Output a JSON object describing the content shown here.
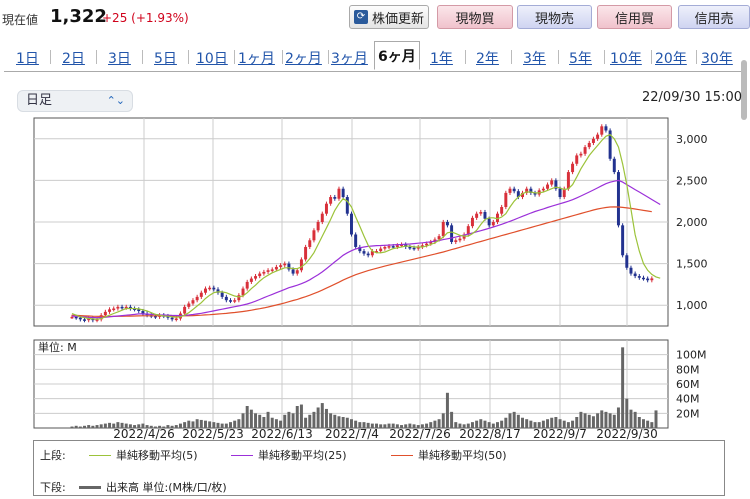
{
  "header": {
    "price_label": "現在値",
    "price_value": "1,322",
    "price_change": "+25 (+1.93%)",
    "refresh_label": "株価更新",
    "buttons": [
      {
        "label": "現物買",
        "style": "red"
      },
      {
        "label": "現物売",
        "style": "blue"
      },
      {
        "label": "信用買",
        "style": "red"
      },
      {
        "label": "信用売",
        "style": "blue"
      }
    ],
    "colors": {
      "price_up": "#d0021b",
      "sell": "#cfd4f1",
      "buy": "#f0c2cc"
    }
  },
  "tabs": [
    {
      "label": "1日",
      "active": false
    },
    {
      "label": "2日",
      "active": false
    },
    {
      "label": "3日",
      "active": false
    },
    {
      "label": "5日",
      "active": false
    },
    {
      "label": "10日",
      "active": false
    },
    {
      "label": "1ヶ月",
      "active": false
    },
    {
      "label": "2ヶ月",
      "active": false
    },
    {
      "label": "3ヶ月",
      "active": false
    },
    {
      "label": "6ヶ月",
      "active": true
    },
    {
      "label": "1年",
      "active": false
    },
    {
      "label": "2年",
      "active": false
    },
    {
      "label": "3年",
      "active": false
    },
    {
      "label": "5年",
      "active": false
    },
    {
      "label": "10年",
      "active": false
    },
    {
      "label": "20年",
      "active": false
    },
    {
      "label": "30年",
      "active": false
    }
  ],
  "controls": {
    "interval": "日足",
    "datetime": "22/09/30 15:00"
  },
  "legend": {
    "upper_label": "上段:",
    "lower_label": "下段:",
    "ma5": "単純移動平均(5)",
    "ma25": "単純移動平均(25)",
    "ma50": "単純移動平均(50)",
    "volume": "出来高 単位:(M株/口/枚)",
    "colors": {
      "ma5": "#9cc33a",
      "ma25": "#9b30d9",
      "ma50": "#e0502c",
      "volume": "#666666"
    }
  },
  "chart_data": [
    {
      "type": "candlestick",
      "y_ticks": [
        "3,000",
        "2,500",
        "2,000",
        "1,500",
        "1,000"
      ],
      "ylim": [
        750,
        3250
      ],
      "x_ticks": [
        "2022/4/26",
        "2022/5/23",
        "2022/6/13",
        "2022/7/4",
        "2022/7/26",
        "2022/8/17",
        "2022/9/7",
        "2022/9/30"
      ],
      "candle_colors": {
        "up": "#d8303a",
        "down": "#22328f"
      },
      "closes": [
        860,
        850,
        830,
        820,
        840,
        820,
        830,
        880,
        920,
        950,
        960,
        980,
        970,
        980,
        960,
        950,
        930,
        900,
        880,
        870,
        860,
        880,
        870,
        850,
        830,
        840,
        900,
        980,
        1020,
        1060,
        1100,
        1150,
        1200,
        1210,
        1190,
        1150,
        1100,
        1060,
        1050,
        1060,
        1120,
        1200,
        1280,
        1320,
        1350,
        1380,
        1400,
        1420,
        1430,
        1460,
        1480,
        1500,
        1430,
        1380,
        1420,
        1550,
        1700,
        1780,
        1900,
        2000,
        2100,
        2220,
        2300,
        2280,
        2400,
        2300,
        2100,
        1850,
        1700,
        1650,
        1620,
        1600,
        1650,
        1650,
        1680,
        1700,
        1710,
        1700,
        1720,
        1730,
        1700,
        1690,
        1680,
        1700,
        1720,
        1740,
        1760,
        1790,
        1830,
        2000,
        1960,
        1760,
        1780,
        1800,
        1850,
        1950,
        2050,
        2100,
        2120,
        2040,
        1960,
        2000,
        2100,
        2180,
        2350,
        2400,
        2370,
        2300,
        2350,
        2400,
        2350,
        2330,
        2380,
        2400,
        2450,
        2500,
        2400,
        2300,
        2400,
        2600,
        2700,
        2800,
        2820,
        2900,
        2950,
        3000,
        3050,
        3150,
        3100,
        2760,
        2600,
        1960,
        1600,
        1450,
        1380,
        1350,
        1330,
        1320,
        1300,
        1322
      ],
      "ma5": [
        900,
        880,
        860,
        850,
        840,
        835,
        830,
        840,
        860,
        880,
        900,
        920,
        940,
        960,
        960,
        960,
        955,
        945,
        930,
        910,
        890,
        880,
        870,
        868,
        860,
        855,
        860,
        880,
        910,
        950,
        990,
        1030,
        1080,
        1120,
        1150,
        1160,
        1160,
        1150,
        1130,
        1110,
        1100,
        1110,
        1150,
        1200,
        1240,
        1290,
        1330,
        1360,
        1390,
        1410,
        1430,
        1450,
        1450,
        1440,
        1440,
        1460,
        1500,
        1560,
        1630,
        1730,
        1830,
        1930,
        2030,
        2140,
        2220,
        2280,
        2250,
        2180,
        2060,
        1950,
        1830,
        1720,
        1650,
        1630,
        1630,
        1640,
        1660,
        1680,
        1690,
        1700,
        1710,
        1710,
        1700,
        1700,
        1700,
        1710,
        1730,
        1750,
        1780,
        1820,
        1870,
        1880,
        1860,
        1840,
        1830,
        1830,
        1860,
        1900,
        1970,
        2030,
        2050,
        2050,
        2040,
        2060,
        2100,
        2180,
        2250,
        2300,
        2340,
        2360,
        2360,
        2350,
        2350,
        2360,
        2380,
        2400,
        2420,
        2410,
        2390,
        2400,
        2450,
        2540,
        2640,
        2720,
        2800,
        2860,
        2920,
        2980,
        3030,
        3050,
        3000,
        2900,
        2700,
        2450,
        2150,
        1850,
        1650,
        1500,
        1420,
        1370,
        1340,
        1325
      ],
      "ma25": [
        870,
        865,
        862,
        858,
        855,
        852,
        850,
        852,
        855,
        860,
        865,
        870,
        875,
        880,
        885,
        890,
        895,
        895,
        893,
        890,
        888,
        885,
        882,
        880,
        878,
        876,
        875,
        878,
        882,
        888,
        895,
        903,
        912,
        922,
        932,
        942,
        952,
        962,
        972,
        982,
        992,
        1002,
        1015,
        1030,
        1048,
        1068,
        1090,
        1110,
        1130,
        1150,
        1170,
        1190,
        1210,
        1225,
        1240,
        1258,
        1280,
        1305,
        1335,
        1365,
        1400,
        1440,
        1480,
        1520,
        1560,
        1600,
        1630,
        1655,
        1675,
        1690,
        1700,
        1708,
        1712,
        1716,
        1718,
        1720,
        1722,
        1725,
        1728,
        1730,
        1733,
        1736,
        1740,
        1745,
        1750,
        1756,
        1762,
        1770,
        1778,
        1788,
        1798,
        1808,
        1818,
        1830,
        1842,
        1855,
        1868,
        1882,
        1896,
        1910,
        1924,
        1940,
        1956,
        1972,
        1990,
        2008,
        2028,
        2048,
        2068,
        2088,
        2108,
        2126,
        2142,
        2158,
        2174,
        2190,
        2206,
        2220,
        2234,
        2250,
        2268,
        2290,
        2312,
        2336,
        2360,
        2385,
        2410,
        2436,
        2460,
        2478,
        2490,
        2500,
        2480,
        2450,
        2420,
        2390,
        2360,
        2330,
        2300,
        2270,
        2240,
        2210
      ],
      "ma50": [
        880,
        878,
        875,
        872,
        870,
        868,
        866,
        865,
        864,
        864,
        865,
        866,
        867,
        868,
        869,
        870,
        871,
        872,
        872,
        872,
        872,
        872,
        872,
        872,
        871,
        871,
        871,
        872,
        873,
        875,
        877,
        880,
        883,
        886,
        890,
        894,
        898,
        902,
        907,
        912,
        918,
        924,
        932,
        940,
        949,
        958,
        968,
        978,
        990,
        1002,
        1015,
        1028,
        1042,
        1056,
        1070,
        1086,
        1102,
        1120,
        1140,
        1160,
        1182,
        1205,
        1228,
        1252,
        1277,
        1302,
        1325,
        1346,
        1366,
        1384,
        1400,
        1416,
        1430,
        1444,
        1457,
        1470,
        1482,
        1494,
        1506,
        1518,
        1530,
        1542,
        1554,
        1566,
        1578,
        1590,
        1602,
        1614,
        1627,
        1640,
        1654,
        1668,
        1682,
        1696,
        1710,
        1724,
        1738,
        1752,
        1766,
        1780,
        1794,
        1808,
        1822,
        1836,
        1850,
        1864,
        1878,
        1892,
        1906,
        1920,
        1934,
        1948,
        1962,
        1976,
        1990,
        2004,
        2018,
        2032,
        2046,
        2060,
        2074,
        2088,
        2102,
        2116,
        2130,
        2144,
        2156,
        2166,
        2174,
        2180,
        2182,
        2180,
        2176,
        2170,
        2163,
        2156,
        2148,
        2140,
        2132,
        2124
      ]
    },
    {
      "type": "bar",
      "title": "単位: M",
      "y_ticks": [
        "100M",
        "80M",
        "60M",
        "40M",
        "20M"
      ],
      "ylim": [
        0,
        120
      ],
      "values": [
        2,
        3,
        2,
        3,
        4,
        3,
        4,
        5,
        6,
        7,
        6,
        8,
        7,
        6,
        5,
        4,
        5,
        6,
        4,
        3,
        2,
        3,
        2,
        4,
        3,
        4,
        6,
        8,
        10,
        9,
        12,
        11,
        10,
        9,
        8,
        7,
        6,
        6,
        8,
        10,
        12,
        20,
        30,
        25,
        20,
        18,
        15,
        22,
        14,
        12,
        10,
        18,
        22,
        20,
        30,
        32,
        14,
        18,
        22,
        28,
        34,
        26,
        20,
        18,
        16,
        15,
        14,
        12,
        10,
        8,
        8,
        7,
        6,
        6,
        5,
        5,
        6,
        6,
        5,
        4,
        5,
        6,
        5,
        4,
        5,
        6,
        8,
        10,
        12,
        20,
        48,
        22,
        8,
        6,
        5,
        6,
        8,
        10,
        12,
        10,
        8,
        6,
        8,
        10,
        14,
        20,
        22,
        18,
        14,
        12,
        10,
        8,
        8,
        10,
        12,
        14,
        15,
        12,
        10,
        8,
        10,
        15,
        22,
        20,
        18,
        16,
        20,
        24,
        22,
        20,
        18,
        28,
        110,
        40,
        25,
        22,
        15,
        12,
        10,
        8,
        24
      ]
    }
  ]
}
